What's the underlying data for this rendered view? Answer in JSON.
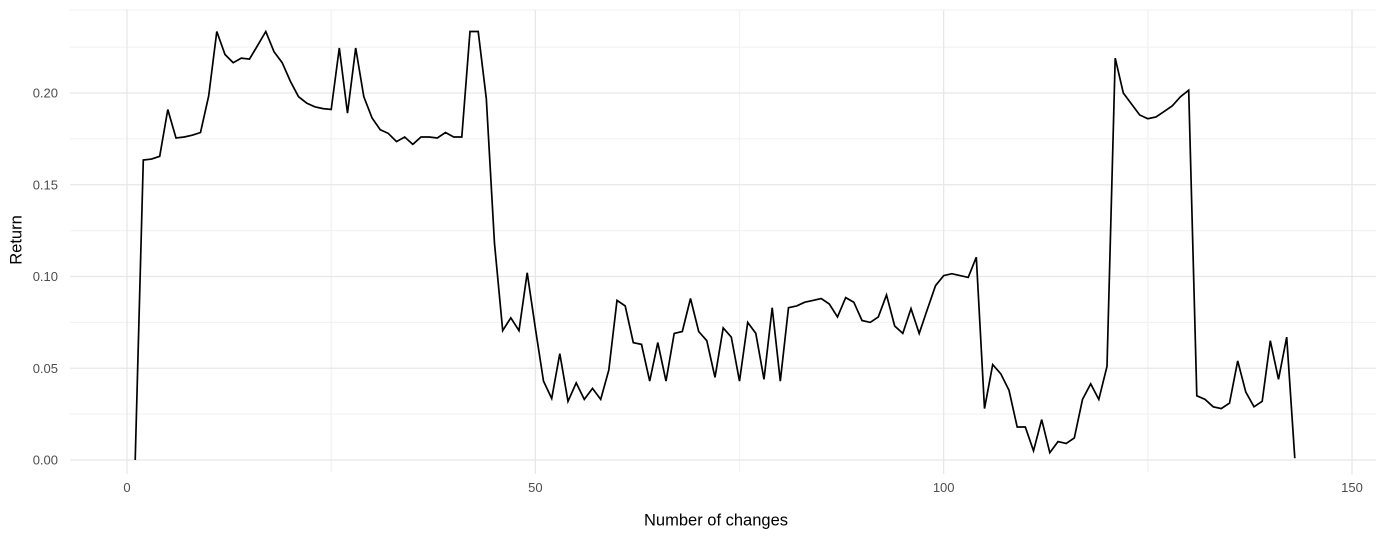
{
  "chart_data": {
    "type": "line",
    "title": "",
    "xlabel": "Number of changes",
    "ylabel": "Return",
    "legend": "none",
    "grid": true,
    "background": "#ffffff",
    "line_color": "#000000",
    "major_grid_color": "#e7e7e7",
    "minor_grid_color": "#f3f3f3",
    "axis_text_color": "#4d4d4d",
    "xlim": [
      -6,
      151
    ],
    "ylim": [
      0,
      0.245
    ],
    "x_ticks": {
      "values": [
        0,
        50,
        100,
        150
      ],
      "labels": [
        "0",
        "50",
        "100",
        "150"
      ]
    },
    "x_minor_ticks": [
      25,
      75,
      125
    ],
    "y_ticks": {
      "values": [
        0,
        0.05,
        0.1,
        0.15,
        0.2
      ],
      "labels": [
        "0.00",
        "0.05",
        "0.10",
        "0.15",
        "0.20"
      ]
    },
    "y_minor_ticks": [
      0.025,
      0.075,
      0.125,
      0.175,
      0.225
    ],
    "x_start": 1,
    "x_step": 1,
    "values": [
      0.0,
      0.1635,
      0.164,
      0.1655,
      0.191,
      0.1755,
      0.176,
      0.177,
      0.1785,
      0.1985,
      0.2335,
      0.221,
      0.2165,
      0.219,
      0.2185,
      0.226,
      0.2335,
      0.2225,
      0.2165,
      0.2065,
      0.198,
      0.1945,
      0.1925,
      0.1915,
      0.191,
      0.2245,
      0.189,
      0.2245,
      0.198,
      0.1865,
      0.18,
      0.178,
      0.1735,
      0.176,
      0.172,
      0.176,
      0.176,
      0.1755,
      0.1785,
      0.176,
      0.176,
      0.2335,
      0.2335,
      0.197,
      0.118,
      0.0705,
      0.0775,
      0.0705,
      0.102,
      0.072,
      0.043,
      0.0335,
      0.058,
      0.032,
      0.042,
      0.033,
      0.039,
      0.033,
      0.049,
      0.087,
      0.084,
      0.064,
      0.063,
      0.043,
      0.064,
      0.043,
      0.069,
      0.07,
      0.088,
      0.07,
      0.065,
      0.045,
      0.072,
      0.067,
      0.043,
      0.075,
      0.069,
      0.044,
      0.083,
      0.043,
      0.083,
      0.084,
      0.086,
      0.087,
      0.088,
      0.085,
      0.078,
      0.0885,
      0.086,
      0.076,
      0.075,
      0.078,
      0.09,
      0.073,
      0.069,
      0.0825,
      0.069,
      0.082,
      0.095,
      0.1005,
      0.1015,
      0.1005,
      0.0995,
      0.1105,
      0.028,
      0.052,
      0.047,
      0.038,
      0.018,
      0.018,
      0.005,
      0.022,
      0.004,
      0.01,
      0.009,
      0.012,
      0.033,
      0.0415,
      0.033,
      0.051,
      0.219,
      0.2,
      0.194,
      0.188,
      0.186,
      0.187,
      0.19,
      0.193,
      0.198,
      0.2015,
      0.035,
      0.033,
      0.029,
      0.028,
      0.031,
      0.054,
      0.037,
      0.029,
      0.032,
      0.065,
      0.044,
      0.067,
      0.001
    ]
  }
}
